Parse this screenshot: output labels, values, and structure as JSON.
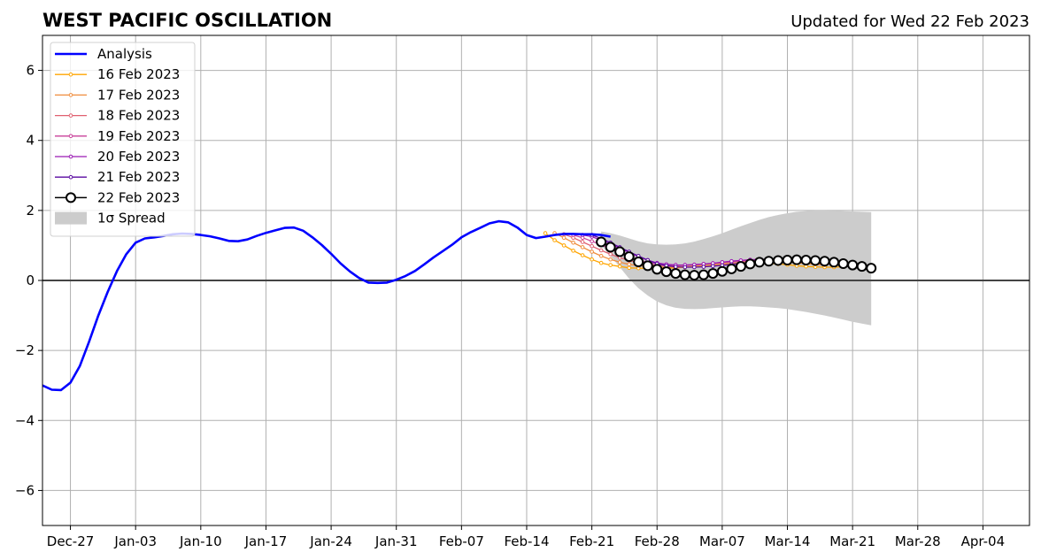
{
  "chart_data": {
    "type": "line",
    "title": "WEST PACIFIC OSCILLATION",
    "subtitle": "Updated for Wed 22 Feb 2023",
    "xlabel": "",
    "ylabel": "",
    "x_range": [
      "2022-12-24",
      "2023-04-09"
    ],
    "ylim": [
      -7,
      7
    ],
    "grid": true,
    "legend_position": "top-left",
    "x_ticks": [
      "Dec-27",
      "Jan-03",
      "Jan-10",
      "Jan-17",
      "Jan-24",
      "Jan-31",
      "Feb-07",
      "Feb-14",
      "Feb-21",
      "Feb-28",
      "Mar-07",
      "Mar-14",
      "Mar-21",
      "Mar-28",
      "Apr-04"
    ],
    "x_tick_dates": [
      "2022-12-27",
      "2023-01-03",
      "2023-01-10",
      "2023-01-17",
      "2023-01-24",
      "2023-01-31",
      "2023-02-07",
      "2023-02-14",
      "2023-02-21",
      "2023-02-28",
      "2023-03-07",
      "2023-03-14",
      "2023-03-21",
      "2023-03-28",
      "2023-04-04"
    ],
    "y_ticks": [
      "−6",
      "−4",
      "−2",
      "0",
      "2",
      "4",
      "6"
    ],
    "y_tick_values": [
      -6,
      -4,
      -2,
      0,
      2,
      4,
      6
    ],
    "analysis": {
      "name": "Analysis",
      "color": "#0000ff",
      "start_date": "2022-12-24",
      "values": [
        -3.0,
        -3.12,
        -3.13,
        -2.92,
        -2.45,
        -1.75,
        -1.0,
        -0.33,
        0.27,
        0.75,
        1.08,
        1.2,
        1.23,
        1.27,
        1.32,
        1.34,
        1.33,
        1.3,
        1.26,
        1.2,
        1.13,
        1.12,
        1.17,
        1.27,
        1.36,
        1.43,
        1.5,
        1.51,
        1.42,
        1.23,
        1.01,
        0.76,
        0.49,
        0.26,
        0.07,
        -0.06,
        -0.07,
        -0.06,
        0.02,
        0.13,
        0.27,
        0.46,
        0.66,
        0.84,
        1.02,
        1.23,
        1.38,
        1.5,
        1.63,
        1.69,
        1.66,
        1.51,
        1.3,
        1.21,
        1.25,
        1.3,
        1.33,
        1.33,
        1.32,
        1.32,
        1.3,
        1.25
      ]
    },
    "forecasts": [
      {
        "name": "16 Feb 2023",
        "color": "#ffa500",
        "start_date": "2023-02-16",
        "values": [
          1.35,
          1.15,
          1.0,
          0.85,
          0.72,
          0.6,
          0.5,
          0.44,
          0.4,
          0.36,
          0.35,
          0.34,
          0.34,
          0.35,
          0.36,
          0.38,
          0.4,
          0.42,
          0.44,
          0.46,
          0.48,
          0.5,
          0.51,
          0.5,
          0.49,
          0.47,
          0.45,
          0.42,
          0.4,
          0.39,
          0.38,
          0.38,
          0.39
        ]
      },
      {
        "name": "17 Feb 2023",
        "color": "#f08c3c",
        "start_date": "2023-02-17",
        "values": [
          1.35,
          1.22,
          1.08,
          0.95,
          0.82,
          0.7,
          0.6,
          0.52,
          0.46,
          0.42,
          0.4,
          0.39,
          0.38,
          0.38,
          0.39,
          0.4,
          0.42,
          0.44,
          0.46,
          0.48,
          0.5,
          0.52,
          0.54,
          0.55,
          0.54,
          0.52,
          0.5,
          0.48,
          0.46,
          0.44
        ]
      },
      {
        "name": "18 Feb 2023",
        "color": "#e06070",
        "start_date": "2023-02-18",
        "values": [
          1.32,
          1.22,
          1.1,
          0.98,
          0.86,
          0.75,
          0.65,
          0.57,
          0.5,
          0.46,
          0.43,
          0.42,
          0.42,
          0.43,
          0.44,
          0.46,
          0.48,
          0.5,
          0.52,
          0.54,
          0.56,
          0.58,
          0.59,
          0.58,
          0.56,
          0.54,
          0.52,
          0.5,
          0.48,
          0.47,
          0.46
        ]
      },
      {
        "name": "19 Feb 2023",
        "color": "#c8409a",
        "start_date": "2023-02-19",
        "values": [
          1.3,
          1.22,
          1.12,
          1.02,
          0.9,
          0.78,
          0.67,
          0.58,
          0.51,
          0.47,
          0.45,
          0.44,
          0.44,
          0.45,
          0.47,
          0.49,
          0.52,
          0.54,
          0.57,
          0.59,
          0.6,
          0.6,
          0.59,
          0.57,
          0.55,
          0.52,
          0.5,
          0.48,
          0.47,
          0.46,
          0.46
        ]
      },
      {
        "name": "20 Feb 2023",
        "color": "#9a1ab4",
        "start_date": "2023-02-20",
        "values": [
          1.3,
          1.25,
          1.15,
          1.04,
          0.92,
          0.8,
          0.68,
          0.58,
          0.5,
          0.46,
          0.44,
          0.44,
          0.45,
          0.47,
          0.49,
          0.52,
          0.55,
          0.57,
          0.59,
          0.6,
          0.6,
          0.59,
          0.58,
          0.56,
          0.54,
          0.52,
          0.5,
          0.48,
          0.47,
          0.46
        ]
      },
      {
        "name": "21 Feb 2023",
        "color": "#5a0aa0",
        "start_date": "2023-02-21",
        "values": [
          1.3,
          1.2,
          1.08,
          0.95,
          0.82,
          0.7,
          0.58,
          0.48,
          0.42,
          0.39,
          0.38,
          0.38,
          0.39,
          0.41,
          0.43,
          0.46,
          0.49,
          0.52,
          0.55,
          0.57,
          0.58,
          0.58,
          0.57,
          0.55,
          0.53,
          0.5,
          0.48,
          0.46,
          0.45
        ]
      },
      {
        "name": "22 Feb 2023",
        "color": "#000000",
        "start_date": "2023-02-22",
        "values": [
          1.1,
          0.95,
          0.82,
          0.68,
          0.53,
          0.42,
          0.32,
          0.25,
          0.2,
          0.16,
          0.15,
          0.16,
          0.2,
          0.26,
          0.33,
          0.4,
          0.47,
          0.52,
          0.55,
          0.57,
          0.58,
          0.59,
          0.58,
          0.57,
          0.55,
          0.52,
          0.48,
          0.44,
          0.4,
          0.35
        ]
      }
    ],
    "spread": {
      "name": "1σ Spread",
      "color": "#cccccc",
      "start_date": "2023-02-22",
      "upper": [
        1.4,
        1.35,
        1.28,
        1.2,
        1.12,
        1.06,
        1.03,
        1.02,
        1.03,
        1.06,
        1.11,
        1.18,
        1.26,
        1.35,
        1.45,
        1.55,
        1.64,
        1.73,
        1.81,
        1.87,
        1.92,
        1.96,
        1.98,
        2.0,
        2.0,
        1.99,
        1.98,
        1.97,
        1.96,
        1.95
      ],
      "lower": [
        1.0,
        0.7,
        0.38,
        0.05,
        -0.22,
        -0.43,
        -0.6,
        -0.71,
        -0.78,
        -0.81,
        -0.82,
        -0.81,
        -0.79,
        -0.77,
        -0.75,
        -0.74,
        -0.74,
        -0.75,
        -0.77,
        -0.79,
        -0.82,
        -0.86,
        -0.9,
        -0.95,
        -1.0,
        -1.06,
        -1.12,
        -1.18,
        -1.23,
        -1.28
      ]
    }
  }
}
